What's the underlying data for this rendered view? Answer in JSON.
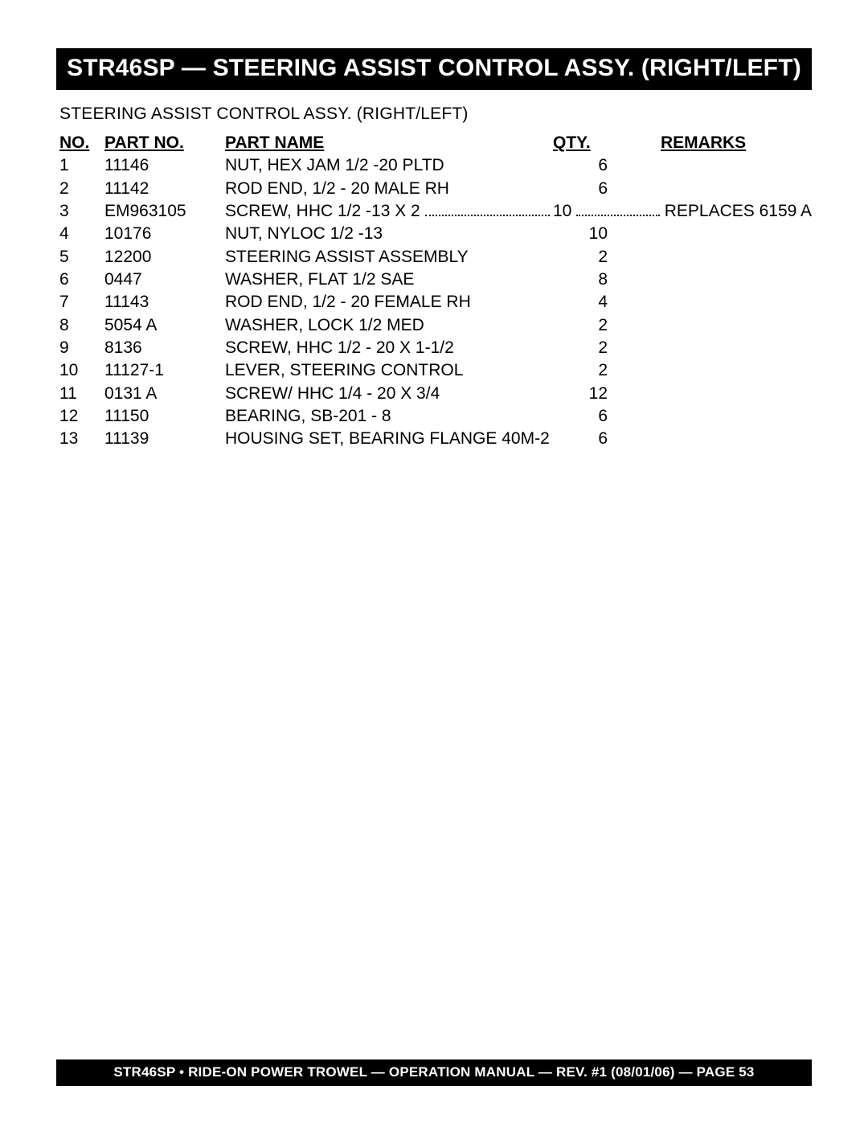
{
  "title_bar": "STR46SP — STEERING ASSIST CONTROL ASSY. (RIGHT/LEFT)",
  "subtitle": "STEERING ASSIST CONTROL ASSY. (RIGHT/LEFT)",
  "headers": {
    "no": "NO.",
    "part_no": "PART NO.",
    "part_name": "PART NAME",
    "qty": "QTY.",
    "remarks": "REMARKS"
  },
  "rows": [
    {
      "no": "1",
      "part_no": "11146",
      "name": "NUT, HEX JAM 1/2 -20 PLTD",
      "qty": "6",
      "remarks": ""
    },
    {
      "no": "2",
      "part_no": "11142",
      "name": "ROD END, 1/2 - 20 MALE RH",
      "qty": "6",
      "remarks": ""
    },
    {
      "no": "3",
      "part_no": "EM963105",
      "name": "SCREW, HHC 1/2 -13 X 2",
      "qty": "10",
      "remarks": "REPLACES 6159 A",
      "leader": true
    },
    {
      "no": "4",
      "part_no": "10176",
      "name": "NUT, NYLOC 1/2 -13",
      "qty": "10",
      "remarks": ""
    },
    {
      "no": "5",
      "part_no": "12200",
      "name": "STEERING  ASSIST  ASSEMBLY",
      "qty": "2",
      "remarks": ""
    },
    {
      "no": "6",
      "part_no": "0447",
      "name": "WASHER, FLAT 1/2 SAE",
      "qty": "8",
      "remarks": ""
    },
    {
      "no": "7",
      "part_no": "11143",
      "name": "ROD END, 1/2 - 20 FEMALE RH",
      "qty": "4",
      "remarks": ""
    },
    {
      "no": "8",
      "part_no": "5054 A",
      "name": "WASHER, LOCK 1/2 MED",
      "qty": "2",
      "remarks": ""
    },
    {
      "no": "9",
      "part_no": "8136",
      "name": "SCREW, HHC 1/2 - 20 X 1-1/2",
      "qty": "2",
      "remarks": ""
    },
    {
      "no": "10",
      "part_no": "11127-1",
      "name": "LEVER, STEERING CONTROL",
      "qty": "2",
      "remarks": ""
    },
    {
      "no": "11",
      "part_no": "0131 A",
      "name": "SCREW/ HHC 1/4 - 20 X 3/4",
      "qty": "12",
      "remarks": ""
    },
    {
      "no": "12",
      "part_no": "11150",
      "name": "BEARING, SB-201 - 8",
      "qty": "6",
      "remarks": ""
    },
    {
      "no": "13",
      "part_no": "11139",
      "name": "HOUSING SET, BEARING FLANGE 40M-2",
      "qty": "6",
      "remarks": ""
    }
  ],
  "footer": "STR46SP • RIDE-ON POWER TROWEL — OPERATION MANUAL — REV. #1 (08/01/06) — PAGE 53",
  "colors": {
    "bar_bg": "#000000",
    "bar_text": "#ffffff",
    "page_bg": "#ffffff",
    "text": "#000000"
  }
}
